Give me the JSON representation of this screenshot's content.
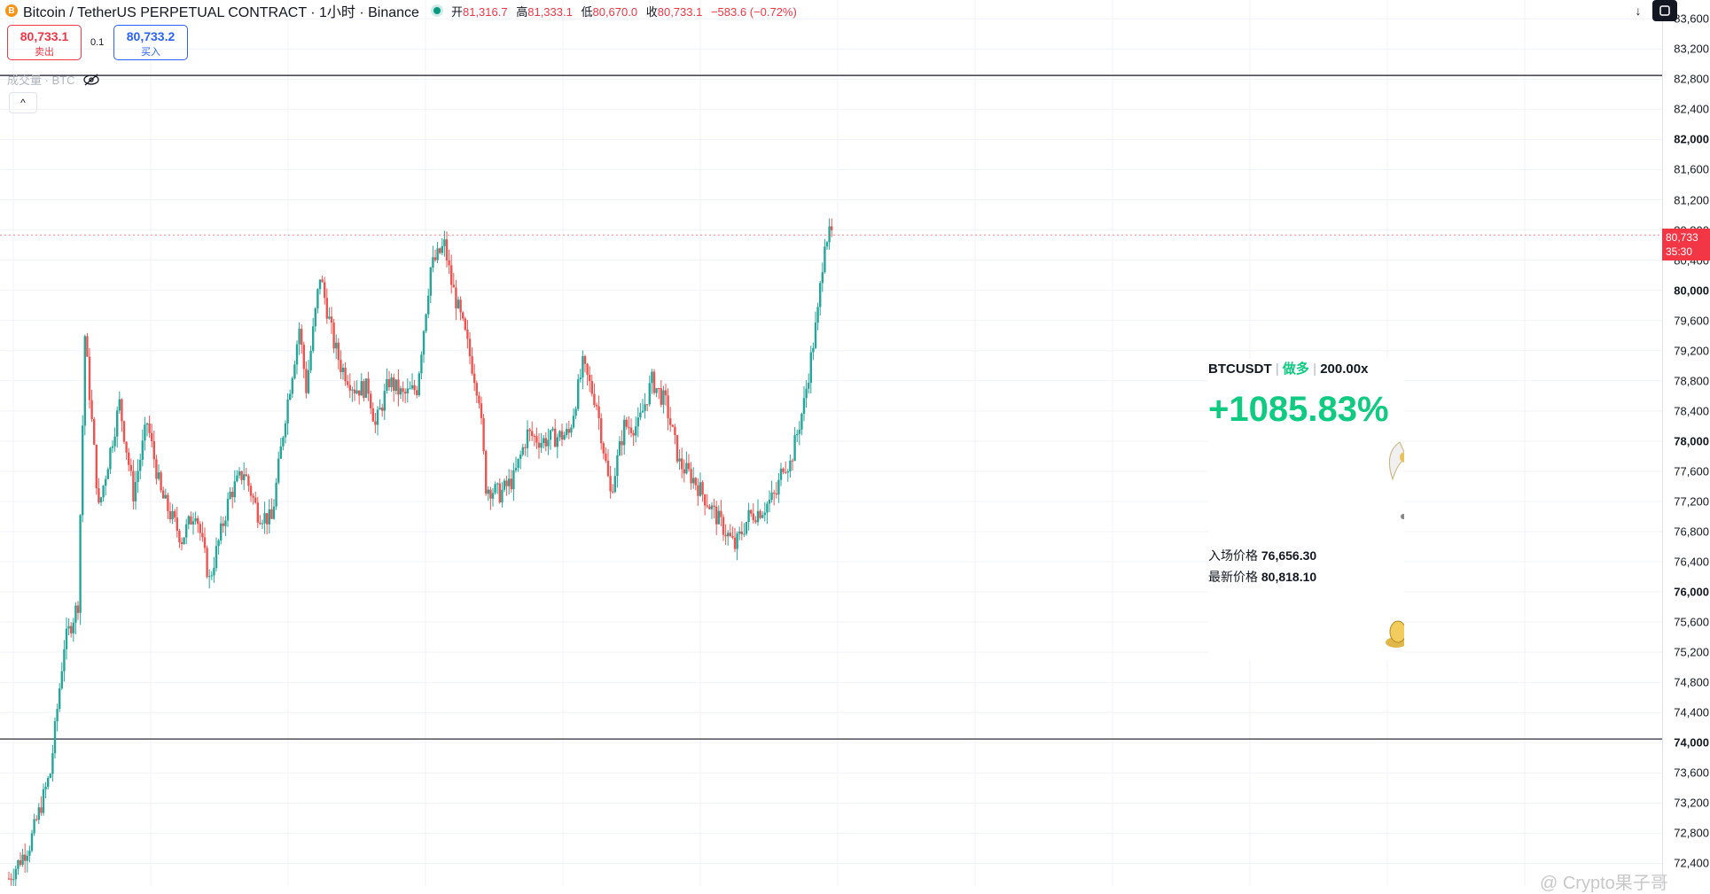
{
  "header": {
    "coin_icon": "B",
    "symbol_title": "Bitcoin / TetherUS PERPETUAL CONTRACT · 1小时 · Binance",
    "status_color": "#089981",
    "open_label": "开",
    "open": "81,316.7",
    "high_label": "高",
    "high": "81,333.1",
    "low_label": "低",
    "low": "80,670.0",
    "close_label": "收",
    "close": "80,733.1",
    "change": "−583.6 (−0.72%)"
  },
  "toolbar": {
    "download_icon": "arrow-down-icon",
    "fullscreen_icon": "fullscreen-icon"
  },
  "trade": {
    "sell_price": "80,733.1",
    "sell_label": "卖出",
    "spread": "0.1",
    "buy_price": "80,733.2",
    "buy_label": "买入"
  },
  "volume": {
    "label": "成交量 · BTC"
  },
  "price_tag": {
    "price": "80,733",
    "countdown": "35:30"
  },
  "position_card": {
    "pair": "BTCUSDT",
    "side": "做多",
    "leverage": "200.00x",
    "pnl_percent": "+1085.83%",
    "entry_label": "入场价格",
    "entry_price": "76,656.30",
    "last_label": "最新价格",
    "last_price": "80,818.10"
  },
  "watermark": "@ Crypto果子哥",
  "colors": {
    "up": "#26a69a",
    "down": "#ef5350",
    "pnl": "#0ecb81",
    "accent_red": "#f23645",
    "accent_blue": "#2962ff"
  },
  "chart_data": {
    "type": "candlestick",
    "ylim": [
      72100,
      83850
    ],
    "y_ticks": [
      {
        "value": 83600,
        "label": "83,600"
      },
      {
        "value": 83200,
        "label": "83,200"
      },
      {
        "value": 82800,
        "label": "82,800"
      },
      {
        "value": 82400,
        "label": "82,400"
      },
      {
        "value": 82000,
        "label": "82,000",
        "bold": true
      },
      {
        "value": 81600,
        "label": "81,600"
      },
      {
        "value": 81200,
        "label": "81,200"
      },
      {
        "value": 80800,
        "label": "80,800"
      },
      {
        "value": 80400,
        "label": "80,400"
      },
      {
        "value": 80000,
        "label": "80,000",
        "bold": true
      },
      {
        "value": 79600,
        "label": "79,600"
      },
      {
        "value": 79200,
        "label": "79,200"
      },
      {
        "value": 78800,
        "label": "78,800"
      },
      {
        "value": 78400,
        "label": "78,400"
      },
      {
        "value": 78000,
        "label": "78,000",
        "bold": true
      },
      {
        "value": 77600,
        "label": "77,600"
      },
      {
        "value": 77200,
        "label": "77,200"
      },
      {
        "value": 76800,
        "label": "76,800"
      },
      {
        "value": 76400,
        "label": "76,400"
      },
      {
        "value": 76000,
        "label": "76,000",
        "bold": true
      },
      {
        "value": 75600,
        "label": "75,600"
      },
      {
        "value": 75200,
        "label": "75,200"
      },
      {
        "value": 74800,
        "label": "74,800"
      },
      {
        "value": 74400,
        "label": "74,400"
      },
      {
        "value": 74000,
        "label": "74,000",
        "bold": true
      },
      {
        "value": 73600,
        "label": "73,600"
      },
      {
        "value": 73200,
        "label": "73,200"
      },
      {
        "value": 72800,
        "label": "72,800"
      },
      {
        "value": 72400,
        "label": "72,400"
      }
    ],
    "horizontal_lines": [
      82850,
      74050
    ],
    "last_price": 80733,
    "grid": true,
    "path_points": [
      [
        0,
        72200
      ],
      [
        3,
        72650
      ],
      [
        6,
        73600
      ],
      [
        8,
        75300
      ],
      [
        10,
        75850
      ],
      [
        11,
        79400
      ],
      [
        13,
        77100
      ],
      [
        16,
        78500
      ],
      [
        18,
        77300
      ],
      [
        20,
        78250
      ],
      [
        22,
        77300
      ],
      [
        25,
        76700
      ],
      [
        27,
        77100
      ],
      [
        29,
        76150
      ],
      [
        32,
        77300
      ],
      [
        34,
        77600
      ],
      [
        36,
        77050
      ],
      [
        38,
        76950
      ],
      [
        40,
        78350
      ],
      [
        42,
        79500
      ],
      [
        43,
        78700
      ],
      [
        45,
        80200
      ],
      [
        47,
        79300
      ],
      [
        48,
        79000
      ],
      [
        50,
        78700
      ],
      [
        52,
        78700
      ],
      [
        53,
        78200
      ],
      [
        55,
        78800
      ],
      [
        57,
        78600
      ],
      [
        59,
        78700
      ],
      [
        61,
        80300
      ],
      [
        63,
        80600
      ],
      [
        64,
        80100
      ],
      [
        66,
        79400
      ],
      [
        68,
        78600
      ],
      [
        69,
        77400
      ],
      [
        71,
        77300
      ],
      [
        73,
        77500
      ],
      [
        75,
        78100
      ],
      [
        77,
        78000
      ],
      [
        79,
        78050
      ],
      [
        81,
        78100
      ],
      [
        83,
        79000
      ],
      [
        85,
        78500
      ],
      [
        87,
        77300
      ],
      [
        89,
        78200
      ],
      [
        91,
        78200
      ],
      [
        93,
        78800
      ],
      [
        95,
        78500
      ],
      [
        97,
        77700
      ],
      [
        99,
        77500
      ],
      [
        101,
        77200
      ],
      [
        103,
        76900
      ],
      [
        105,
        76600
      ],
      [
        107,
        77000
      ],
      [
        109,
        77100
      ],
      [
        111,
        77300
      ],
      [
        112,
        77700
      ],
      [
        113,
        77700
      ],
      [
        115,
        78500
      ],
      [
        117,
        79700
      ],
      [
        118,
        80700
      ],
      [
        119,
        80733
      ]
    ]
  }
}
